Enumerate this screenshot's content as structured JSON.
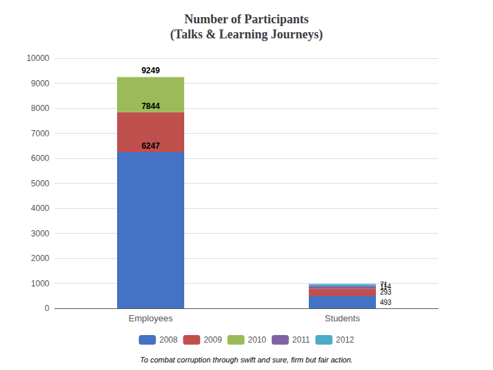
{
  "chart_data": {
    "type": "bar",
    "title": "Number of Participants\n(Talks & Learning Journeys)",
    "categories": [
      "Employees",
      "Students"
    ],
    "series": [
      {
        "name": "2008",
        "color": "#4472C4",
        "values": [
          6247,
          493
        ]
      },
      {
        "name": "2009",
        "color": "#C0504D",
        "values": [
          1597,
          293
        ]
      },
      {
        "name": "2010",
        "color": "#9BBB59",
        "values": [
          1405,
          0
        ]
      },
      {
        "name": "2011",
        "color": "#8064A2",
        "values": [
          0,
          114
        ]
      },
      {
        "name": "2012",
        "color": "#4BACC6",
        "values": [
          0,
          71
        ]
      }
    ],
    "stacked": true,
    "ylim": [
      0,
      10000
    ],
    "yticks": [
      0,
      1000,
      2000,
      3000,
      4000,
      5000,
      6000,
      7000,
      8000,
      9000,
      10000
    ],
    "grid": true,
    "legend": "bottom",
    "annotations": [
      {
        "text": "6247",
        "x": "Employees",
        "y": 6247
      },
      {
        "text": "7844",
        "x": "Employees",
        "y": 7844
      },
      {
        "text": "9249",
        "x": "Employees",
        "y": 9249
      },
      {
        "text": "493",
        "x": "Students",
        "y": 246.5
      },
      {
        "text": "293",
        "x": "Students",
        "y": 639.5
      },
      {
        "text": "114",
        "x": "Students",
        "y": 850
      },
      {
        "text": "71",
        "x": "Students",
        "y": 942.5
      },
      {
        "text": "To combat corruption through swift and sure, firm but fair action."
      }
    ]
  }
}
